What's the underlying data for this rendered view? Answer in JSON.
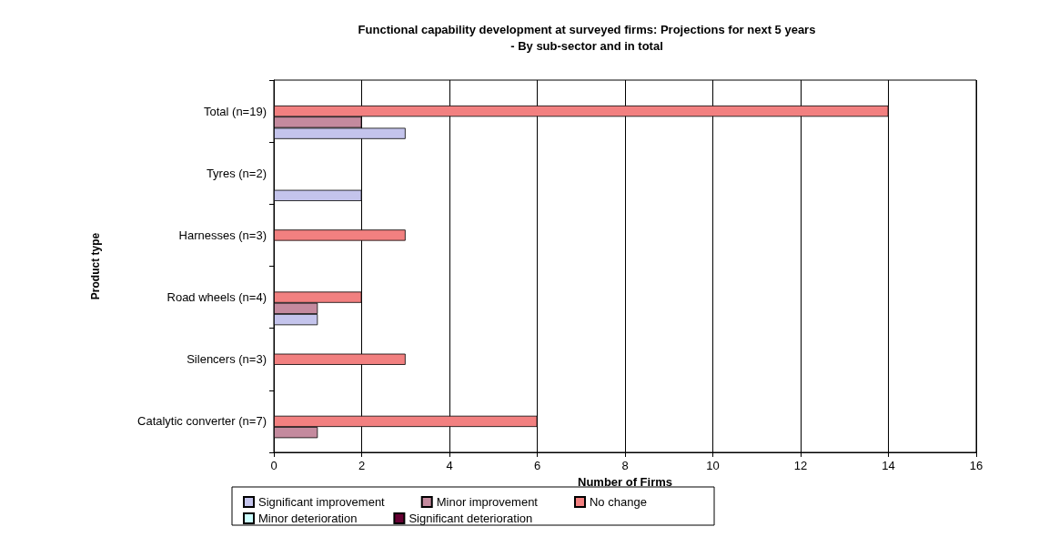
{
  "chart_data": {
    "type": "bar",
    "orientation": "horizontal",
    "title": "Functional capability development at surveyed firms: Projections for next 5 years\n- By sub-sector and in total",
    "xlabel": "Number of Firms",
    "ylabel": "Product type",
    "categories": [
      "Total (n=19)",
      "Tyres (n=2)",
      "Harnesses (n=3)",
      "Road wheels (n=4)",
      "Silencers (n=3)",
      "Catalytic converter (n=7)"
    ],
    "series": [
      {
        "name": "Significant improvement",
        "color": "#c4c4ec",
        "values": [
          3,
          2,
          0,
          1,
          0,
          0
        ]
      },
      {
        "name": "Minor improvement",
        "color": "#c48a9e",
        "values": [
          2,
          0,
          0,
          1,
          0,
          1
        ]
      },
      {
        "name": "No change",
        "color": "#f28080",
        "values": [
          14,
          0,
          3,
          2,
          3,
          6
        ]
      },
      {
        "name": "Minor deterioration",
        "color": "#ccffff",
        "values": [
          0,
          0,
          0,
          0,
          0,
          0
        ]
      },
      {
        "name": "Significant deterioration",
        "color": "#660033",
        "values": [
          0,
          0,
          0,
          0,
          0,
          0
        ]
      }
    ],
    "xlim": [
      0,
      16
    ],
    "xticks": [
      0,
      2,
      4,
      6,
      8,
      10,
      12,
      14,
      16
    ],
    "grid": "x",
    "legend": "bottom"
  }
}
